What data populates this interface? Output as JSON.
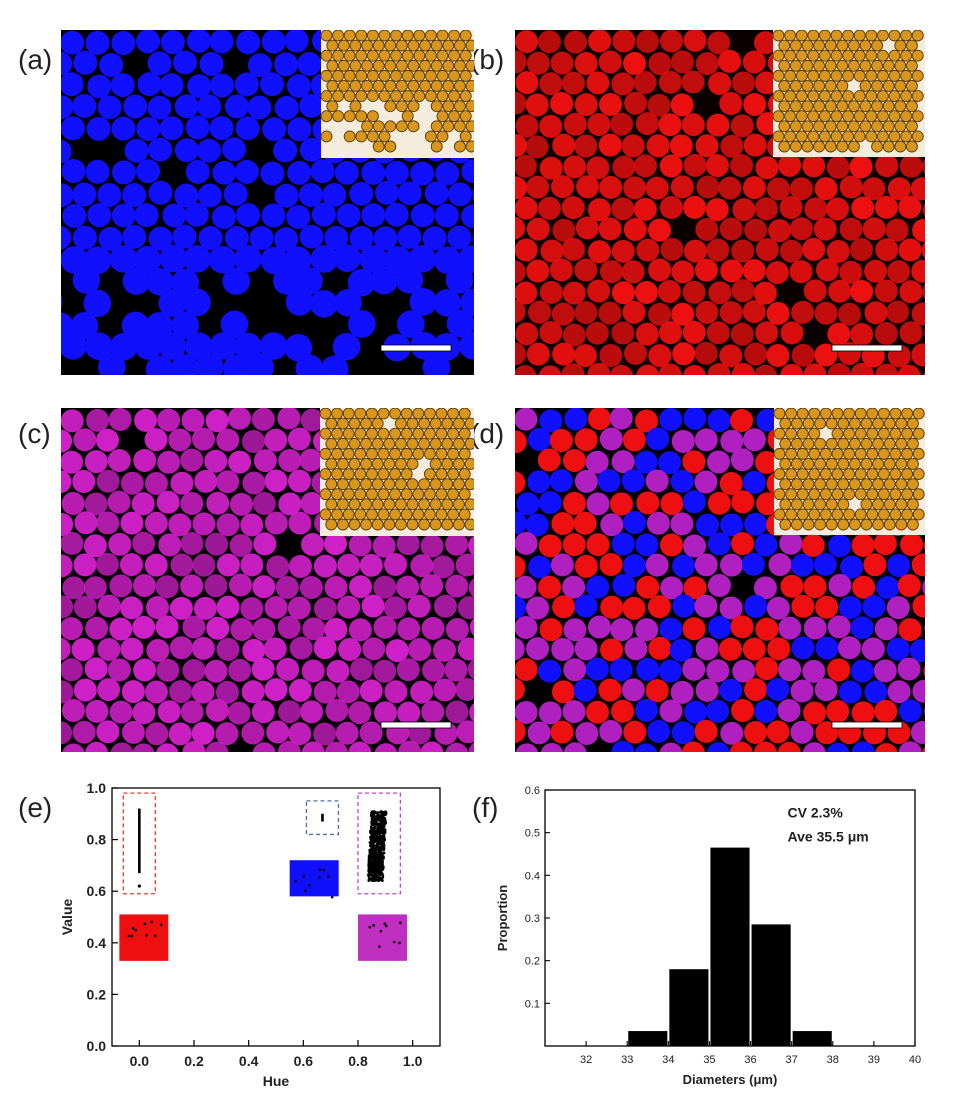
{
  "panels": {
    "a": {
      "label": "(a)",
      "color": "#1010ff",
      "bg": "#000000"
    },
    "b": {
      "label": "(b)",
      "color": "#ee1010",
      "bg": "#0a0000"
    },
    "c": {
      "label": "(c)",
      "color": "#d020c8",
      "bg": "#000000"
    },
    "d": {
      "label": "(d)",
      "colors": [
        "#ee1010",
        "#1010ff",
        "#b020c0"
      ],
      "bg": "#000000"
    }
  },
  "inset": {
    "fill": "#d8961c",
    "edge": "#5a3a08",
    "bg": "#f4ecdc"
  },
  "chart_data": [
    {
      "id": "e",
      "label": "(e)",
      "type": "scatter",
      "xlabel": "Hue",
      "ylabel": "Value",
      "xlim": [
        -0.1,
        1.1
      ],
      "ylim": [
        0.0,
        1.0
      ],
      "xticks": [
        "0.0",
        "0.2",
        "0.4",
        "0.6",
        "0.8",
        "1.0"
      ],
      "yticks": [
        "0.0",
        "0.2",
        "0.4",
        "0.6",
        "0.8",
        "1.0"
      ],
      "series": [
        {
          "name": "red",
          "hue": 0.0,
          "value_range": [
            0.62,
            0.92
          ],
          "box_color": "#e04020",
          "swatch": "#ee1010"
        },
        {
          "name": "blue",
          "hue": 0.67,
          "value_range": [
            0.87,
            0.9
          ],
          "box_color": "#5070a0",
          "swatch": "#1010ff"
        },
        {
          "name": "magenta",
          "hue": 0.87,
          "value_range": [
            0.64,
            0.91
          ],
          "box_color": "#d040d0",
          "swatch": "#c030c0"
        }
      ]
    },
    {
      "id": "f",
      "label": "(f)",
      "type": "bar",
      "xlabel": "Diameters (μm)",
      "ylabel": "Proportion",
      "xlim": [
        31,
        40
      ],
      "ylim": [
        0,
        0.6
      ],
      "xticks": [
        "32",
        "33",
        "34",
        "35",
        "36",
        "37",
        "38",
        "39",
        "40"
      ],
      "yticks": [
        "0.1",
        "0.2",
        "0.3",
        "0.4",
        "0.5",
        "0.6"
      ],
      "bins": [
        [
          33,
          34
        ],
        [
          34,
          35
        ],
        [
          35,
          36
        ],
        [
          36,
          37
        ],
        [
          37,
          38
        ]
      ],
      "values": [
        0.035,
        0.18,
        0.465,
        0.285,
        0.035
      ],
      "annotations": [
        "CV  2.3%",
        "Ave 35.5 μm"
      ]
    }
  ]
}
